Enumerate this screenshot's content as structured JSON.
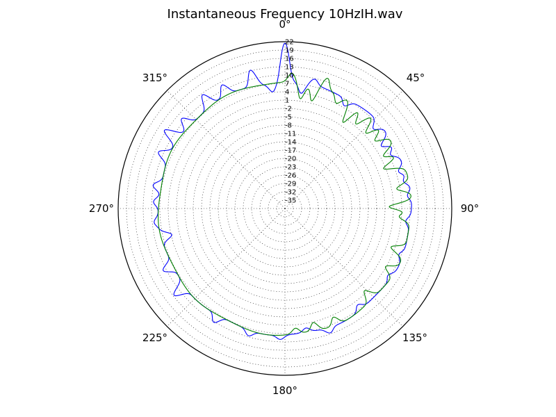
{
  "chart_data": {
    "type": "polar-line",
    "title": "Instantaneous Frequency  10HzIH.wav",
    "angle_tick_labels": [
      "0°",
      "45°",
      "90°",
      "135°",
      "180°",
      "225°",
      "270°",
      "315°"
    ],
    "radial_tick_labels": [
      "22",
      "19",
      "16",
      "13",
      "10",
      "7",
      "4",
      "1",
      "-2",
      "-5",
      "-8",
      "-11",
      "-14",
      "-17",
      "-20",
      "-23",
      "-26",
      "-29",
      "-32",
      "-35"
    ],
    "radial_range": [
      -38,
      22
    ],
    "grid": true,
    "theta_zero": "top",
    "theta_direction": "clockwise",
    "series": [
      {
        "color": "#0000ff",
        "baseline": 7.5,
        "spikes": [
          {
            "theta": 0,
            "amp": 14
          },
          {
            "theta": 8,
            "amp": -4
          },
          {
            "theta": 13,
            "amp": 2
          },
          {
            "theta": 30,
            "amp": -2.5
          },
          {
            "theta": 48,
            "amp": -3
          },
          {
            "theta": 57,
            "amp": -4
          },
          {
            "theta": 63,
            "amp": -2.5
          },
          {
            "theta": 72,
            "amp": -2.5
          },
          {
            "theta": 77,
            "amp": -2
          },
          {
            "theta": 84,
            "amp": -1.5
          },
          {
            "theta": 96,
            "amp": -1.5
          },
          {
            "theta": 112,
            "amp": -1.5
          },
          {
            "theta": 123,
            "amp": -1.5
          },
          {
            "theta": 143,
            "amp": -2
          },
          {
            "theta": 160,
            "amp": 2
          },
          {
            "theta": 170,
            "amp": -1.5
          },
          {
            "theta": 182,
            "amp": 1.5
          },
          {
            "theta": 196,
            "amp": 2
          },
          {
            "theta": 212,
            "amp": 3
          },
          {
            "theta": 232,
            "amp": 5
          },
          {
            "theta": 243,
            "amp": 4
          },
          {
            "theta": 257,
            "amp": -4
          },
          {
            "theta": 264,
            "amp": 1.5
          },
          {
            "theta": 273,
            "amp": 2
          },
          {
            "theta": 280,
            "amp": 3
          },
          {
            "theta": 294,
            "amp": 4
          },
          {
            "theta": 303,
            "amp": 6
          },
          {
            "theta": 311,
            "amp": 4
          },
          {
            "theta": 324,
            "amp": 5
          },
          {
            "theta": 333,
            "amp": 4
          },
          {
            "theta": 346,
            "amp": 6
          },
          {
            "theta": 354,
            "amp": -3
          }
        ]
      },
      {
        "color": "#008000",
        "baseline": 7.5,
        "spikes": [
          {
            "theta": 3,
            "amp": 3
          },
          {
            "theta": 8,
            "amp": -6
          },
          {
            "theta": 14,
            "amp": -6
          },
          {
            "theta": 18,
            "amp": 4
          },
          {
            "theta": 26,
            "amp": -3
          },
          {
            "theta": 34,
            "amp": -8
          },
          {
            "theta": 40,
            "amp": -6
          },
          {
            "theta": 47,
            "amp": -6
          },
          {
            "theta": 53,
            "amp": -5
          },
          {
            "theta": 62,
            "amp": -5
          },
          {
            "theta": 68,
            "amp": -7
          },
          {
            "theta": 80,
            "amp": -5
          },
          {
            "theta": 89,
            "amp": -8
          },
          {
            "theta": 94,
            "amp": -4
          },
          {
            "theta": 110,
            "amp": -5
          },
          {
            "theta": 120,
            "amp": -4
          },
          {
            "theta": 136,
            "amp": -4
          },
          {
            "theta": 156,
            "amp": -3
          },
          {
            "theta": 166,
            "amp": -3
          },
          {
            "theta": 175,
            "amp": -2
          }
        ]
      }
    ]
  }
}
